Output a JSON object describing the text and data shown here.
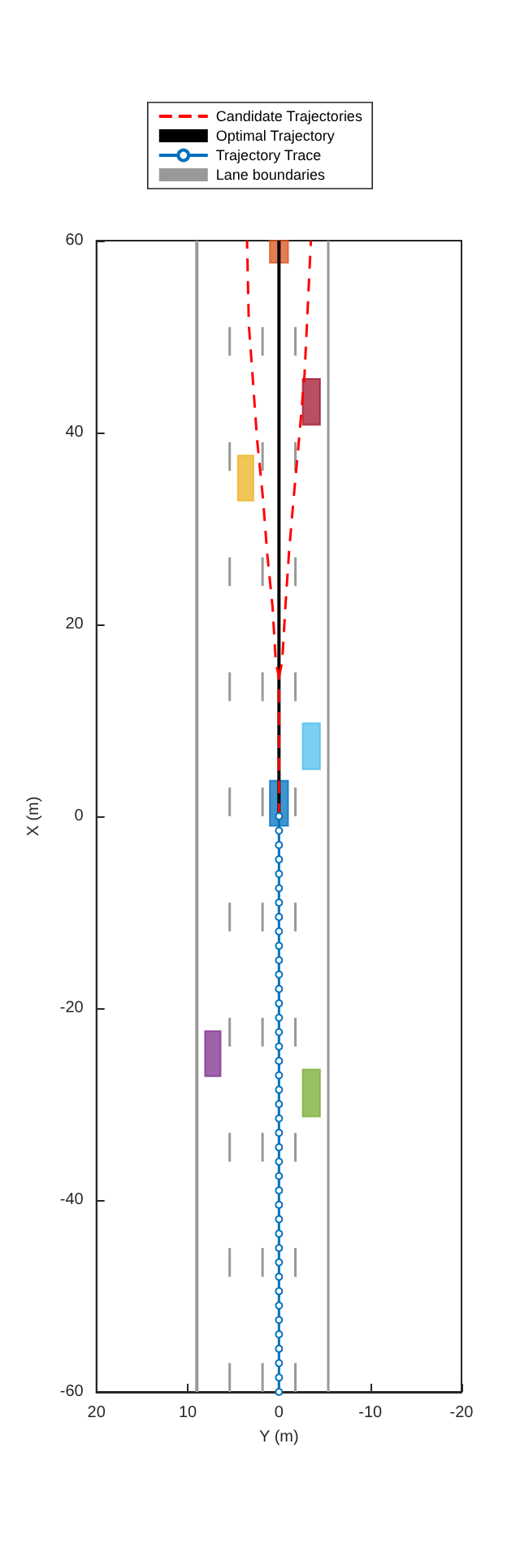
{
  "chart_data": {
    "type": "line",
    "xlabel": "Y (m)",
    "ylabel": "X (m)",
    "xlim": [
      20,
      -20
    ],
    "xticks": [
      20,
      10,
      0,
      -10,
      -20
    ],
    "ylim": [
      -60,
      60
    ],
    "yticks": [
      -60,
      -40,
      -20,
      0,
      20,
      40,
      60
    ],
    "grid": false,
    "legend": "top",
    "series": [
      {
        "name": "Lane boundaries",
        "color": "#999999",
        "x": [
          9,
          9
        ],
        "values": [
          -60,
          60
        ]
      },
      {
        "color": "#999999",
        "x": [
          -5.4,
          -5.4
        ],
        "values": [
          -60,
          60
        ]
      },
      {
        "color": "#999999",
        "x": [
          5.4,
          5.4
        ],
        "values": [
          -60,
          -57
        ]
      },
      {
        "color": "#999999",
        "x": [
          5.4,
          5.4
        ],
        "values": [
          -48,
          -45
        ]
      },
      {
        "color": "#999999",
        "x": [
          5.4,
          5.4
        ],
        "values": [
          -36,
          -33
        ]
      },
      {
        "color": "#999999",
        "x": [
          5.4,
          5.4
        ],
        "values": [
          -24,
          -21
        ]
      },
      {
        "color": "#999999",
        "x": [
          5.4,
          5.4
        ],
        "values": [
          -12,
          -9
        ]
      },
      {
        "color": "#999999",
        "x": [
          5.4,
          5.4
        ],
        "values": [
          0,
          3
        ]
      },
      {
        "color": "#999999",
        "x": [
          5.4,
          5.4
        ],
        "values": [
          12,
          15
        ]
      },
      {
        "color": "#999999",
        "x": [
          5.4,
          5.4
        ],
        "values": [
          24,
          27
        ]
      },
      {
        "color": "#999999",
        "x": [
          5.4,
          5.4
        ],
        "values": [
          36,
          39
        ]
      },
      {
        "color": "#999999",
        "x": [
          5.4,
          5.4
        ],
        "values": [
          48,
          51
        ]
      },
      {
        "color": "#999999",
        "x": [
          1.8,
          1.8
        ],
        "values": [
          -60,
          -57
        ]
      },
      {
        "color": "#999999",
        "x": [
          1.8,
          1.8
        ],
        "values": [
          -48,
          -45
        ]
      },
      {
        "color": "#999999",
        "x": [
          1.8,
          1.8
        ],
        "values": [
          -36,
          -33
        ]
      },
      {
        "color": "#999999",
        "x": [
          1.8,
          1.8
        ],
        "values": [
          -24,
          -21
        ]
      },
      {
        "color": "#999999",
        "x": [
          1.8,
          1.8
        ],
        "values": [
          -12,
          -9
        ]
      },
      {
        "color": "#999999",
        "x": [
          1.8,
          1.8
        ],
        "values": [
          0,
          3
        ]
      },
      {
        "color": "#999999",
        "x": [
          1.8,
          1.8
        ],
        "values": [
          12,
          15
        ]
      },
      {
        "color": "#999999",
        "x": [
          1.8,
          1.8
        ],
        "values": [
          24,
          27
        ]
      },
      {
        "color": "#999999",
        "x": [
          1.8,
          1.8
        ],
        "values": [
          36,
          39
        ]
      },
      {
        "color": "#999999",
        "x": [
          1.8,
          1.8
        ],
        "values": [
          48,
          51
        ]
      },
      {
        "color": "#999999",
        "x": [
          -1.8,
          -1.8
        ],
        "values": [
          -60,
          -57
        ]
      },
      {
        "color": "#999999",
        "x": [
          -1.8,
          -1.8
        ],
        "values": [
          -48,
          -45
        ]
      },
      {
        "color": "#999999",
        "x": [
          -1.8,
          -1.8
        ],
        "values": [
          -36,
          -33
        ]
      },
      {
        "color": "#999999",
        "x": [
          -1.8,
          -1.8
        ],
        "values": [
          -24,
          -21
        ]
      },
      {
        "color": "#999999",
        "x": [
          -1.8,
          -1.8
        ],
        "values": [
          -12,
          -9
        ]
      },
      {
        "color": "#999999",
        "x": [
          -1.8,
          -1.8
        ],
        "values": [
          0,
          3
        ]
      },
      {
        "color": "#999999",
        "x": [
          -1.8,
          -1.8
        ],
        "values": [
          12,
          15
        ]
      },
      {
        "color": "#999999",
        "x": [
          -1.8,
          -1.8
        ],
        "values": [
          24,
          27
        ]
      },
      {
        "color": "#999999",
        "x": [
          -1.8,
          -1.8
        ],
        "values": [
          36,
          39
        ]
      },
      {
        "color": "#999999",
        "x": [
          -1.8,
          -1.8
        ],
        "values": [
          48,
          51
        ]
      },
      {
        "type": "area",
        "color": "#0072bd",
        "x": [
          1,
          -1,
          -1,
          1,
          1
        ],
        "values": [
          -1,
          -1,
          3.7,
          3.7,
          -1
        ]
      },
      {
        "type": "area",
        "color": "#d95319",
        "x": [
          1,
          -1,
          -1,
          1,
          1
        ],
        "values": [
          57.7,
          57.7,
          60,
          60,
          57.7
        ]
      },
      {
        "type": "area",
        "color": "#a2142f",
        "x": [
          -2.6,
          -4.5,
          -4.5,
          -2.6,
          -2.6
        ],
        "values": [
          40.8,
          40.8,
          45.6,
          45.6,
          40.8
        ]
      },
      {
        "type": "area",
        "color": "#edb120",
        "x": [
          4.5,
          2.8,
          2.8,
          4.5,
          4.5
        ],
        "values": [
          32.9,
          32.9,
          37.6,
          37.6,
          32.9
        ]
      },
      {
        "type": "area",
        "color": "#4dbeee",
        "x": [
          -2.6,
          -4.5,
          -4.5,
          -2.6,
          -2.6
        ],
        "values": [
          4.9,
          4.9,
          9.7,
          9.7,
          4.9
        ]
      },
      {
        "type": "area",
        "color": "#7e2f8e",
        "x": [
          8.1,
          6.4,
          6.4,
          8.1,
          8.1
        ],
        "values": [
          -27.1,
          -27.1,
          -22.4,
          -22.4,
          -27.1
        ]
      },
      {
        "type": "area",
        "color": "#77ac30",
        "x": [
          -2.6,
          -4.5,
          -4.5,
          -2.6,
          -2.6
        ],
        "values": [
          -31.3,
          -31.3,
          -26.4,
          -26.4,
          -31.3
        ]
      },
      {
        "name": "Trajectory Trace",
        "color": "#0072bd",
        "marker": "circle",
        "x": [
          0,
          0,
          0,
          0,
          0,
          0,
          0,
          0,
          0,
          0,
          0,
          0,
          0,
          0,
          0,
          0,
          0,
          0,
          0,
          0,
          0,
          0,
          0,
          0,
          0,
          0,
          0,
          0,
          0,
          0,
          0,
          0,
          0,
          0,
          0,
          0,
          0,
          0,
          0,
          0,
          0
        ],
        "values": [
          -60,
          -58.5,
          -57,
          -55.5,
          -54,
          -52.5,
          -51,
          -49.5,
          -48,
          -46.5,
          -45,
          -43.5,
          -42,
          -40.5,
          -39,
          -37.5,
          -36,
          -34.5,
          -33,
          -31.5,
          -30,
          -28.5,
          -27,
          -25.5,
          -24,
          -22.5,
          -21,
          -19.5,
          -18,
          -16.5,
          -15,
          -13.5,
          -12,
          -10.5,
          -9,
          -7.5,
          -6,
          -4.5,
          -3,
          -1.5,
          0
        ]
      },
      {
        "name": "Optimal Trajectory",
        "color": "#000000",
        "x": [
          0,
          0
        ],
        "values": [
          0,
          60
        ]
      },
      {
        "name": "Candidate Trajectories",
        "color": "#ff0000",
        "line_style": "dashed",
        "x": [
          0,
          0,
          0.35,
          0.7,
          1.3,
          1.75,
          2.4,
          2.9,
          3.3,
          3.5
        ],
        "values": [
          0,
          14.5,
          16.1,
          21.8,
          27.5,
          33.1,
          39.3,
          46,
          51.2,
          60
        ]
      },
      {
        "color": "#ff0000",
        "line_style": "dashed",
        "x": [
          0,
          -0.35,
          -0.7,
          -1.1,
          -1.6,
          -2.2,
          -2.8,
          -3.5
        ],
        "values": [
          14.5,
          16.1,
          21.8,
          27.5,
          33.1,
          39.3,
          46,
          60
        ]
      }
    ]
  }
}
